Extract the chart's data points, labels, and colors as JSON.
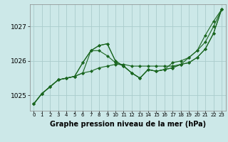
{
  "background_color": "#cce8e8",
  "grid_color": "#aacccc",
  "line_color": "#1a6620",
  "marker_color": "#1a6620",
  "xlabel": "Graphe pression niveau de la mer (hPa)",
  "xlabel_fontsize": 7,
  "xlim": [
    -0.5,
    23.5
  ],
  "ylim": [
    1024.55,
    1027.65
  ],
  "yticks": [
    1025,
    1026,
    1027
  ],
  "xticks": [
    0,
    1,
    2,
    3,
    4,
    5,
    6,
    7,
    8,
    9,
    10,
    11,
    12,
    13,
    14,
    15,
    16,
    17,
    18,
    19,
    20,
    21,
    22,
    23
  ],
  "series": [
    [
      1024.75,
      1025.05,
      1025.25,
      1025.45,
      1025.5,
      1025.55,
      1025.65,
      1025.7,
      1025.8,
      1025.85,
      1025.9,
      1025.9,
      1025.85,
      1025.85,
      1025.85,
      1025.85,
      1025.85,
      1025.85,
      1025.9,
      1025.95,
      1026.1,
      1026.35,
      1026.8,
      1027.5
    ],
    [
      1024.75,
      1025.05,
      1025.25,
      1025.45,
      1025.5,
      1025.55,
      1025.65,
      1026.3,
      1026.45,
      1026.5,
      1026.0,
      1025.85,
      1025.65,
      1025.5,
      1025.75,
      1025.7,
      1025.75,
      1025.8,
      1025.9,
      1025.95,
      1026.1,
      1026.35,
      1026.8,
      1027.5
    ],
    [
      1024.75,
      1025.05,
      1025.25,
      1025.45,
      1025.5,
      1025.55,
      1025.95,
      1026.3,
      1026.45,
      1026.5,
      1026.0,
      1025.85,
      1025.65,
      1025.5,
      1025.75,
      1025.7,
      1025.75,
      1025.8,
      1025.9,
      1026.1,
      1026.3,
      1026.75,
      1027.15,
      1027.5
    ],
    [
      1024.75,
      1025.05,
      1025.25,
      1025.45,
      1025.5,
      1025.55,
      1025.95,
      1026.3,
      1026.3,
      1026.15,
      1025.95,
      1025.85,
      1025.65,
      1025.5,
      1025.75,
      1025.7,
      1025.75,
      1025.95,
      1026.0,
      1026.1,
      1026.3,
      1026.55,
      1027.0,
      1027.5
    ]
  ]
}
